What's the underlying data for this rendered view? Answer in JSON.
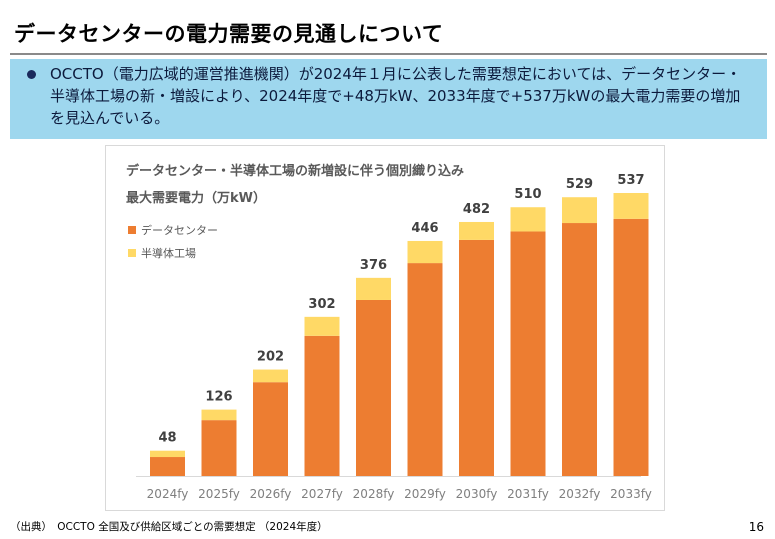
{
  "slide": {
    "title": "データセンターの電力需要の見通しについて",
    "bullet_text": "OCCTO（電力広域的運営推進機関）が2024年１月に公表した需要想定においては、データセンター・半導体工場の新・増設により、2024年度で+48万kW、2033年度で+537万kWの最大電力需要の増加を見込んでいる。",
    "footer_source": "（出典）　OCCTO 全国及び供給区域ごとの需要想定 （2024年度）",
    "page_number": "16"
  },
  "colors": {
    "accent_box": "#9ed7ee",
    "bullet": "#1b2a5c",
    "data_center": "#ed7d31",
    "semiconductor": "#ffd966"
  },
  "chart_data": {
    "type": "bar",
    "stacked": true,
    "title": "データセンター・半導体工場の新増設に伴う個別織り込み",
    "subtitle": "最大需要電力（万kW）",
    "categories": [
      "2024fy",
      "2025fy",
      "2026fy",
      "2027fy",
      "2028fy",
      "2029fy",
      "2030fy",
      "2031fy",
      "2032fy",
      "2033fy"
    ],
    "series": [
      {
        "name": "データセンター",
        "color": "#ed7d31",
        "values": [
          36,
          106,
          178,
          266,
          334,
          404,
          448,
          464,
          480,
          488
        ]
      },
      {
        "name": "半導体工場",
        "color": "#ffd966",
        "values": [
          12,
          20,
          24,
          36,
          42,
          42,
          34,
          46,
          49,
          49
        ]
      }
    ],
    "totals": [
      48,
      126,
      202,
      302,
      376,
      446,
      482,
      510,
      529,
      537
    ],
    "ylim": [
      0,
      537
    ],
    "grid": false,
    "legend_position": "top-left"
  }
}
